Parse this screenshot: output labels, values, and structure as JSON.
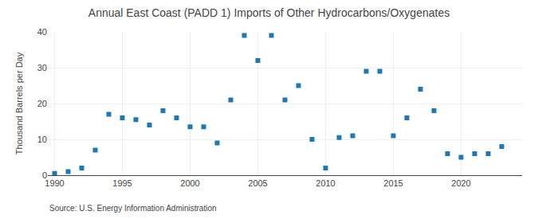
{
  "chart_data": {
    "type": "scatter",
    "title": "Annual East Coast (PADD 1) Imports of Other Hydrocarbons/Oxygenates",
    "ylabel": "Thousand Barrels per Day",
    "annotations": [
      "Source: U.S. Energy Information Administration"
    ],
    "x": [
      1990,
      1991,
      1992,
      1993,
      1994,
      1995,
      1996,
      1997,
      1998,
      1999,
      2000,
      2001,
      2002,
      2003,
      2004,
      2005,
      2006,
      2007,
      2008,
      2009,
      2010,
      2011,
      2012,
      2013,
      2014,
      2015,
      2016,
      2017,
      2018,
      2019,
      2020,
      2021,
      2022,
      2023
    ],
    "values": [
      0.5,
      1.0,
      2.0,
      7.0,
      17.0,
      16.0,
      15.5,
      14.0,
      18.0,
      16.0,
      13.5,
      13.5,
      9.0,
      21.0,
      39.0,
      32.0,
      39.0,
      21.0,
      25.0,
      10.0,
      2.0,
      10.5,
      11.0,
      29.0,
      29.0,
      11.0,
      16.0,
      24.0,
      18.0,
      6.0,
      5.0,
      6.0,
      6.0,
      8.0
    ],
    "xlim": [
      1989.5,
      2024.5
    ],
    "xticks": [
      1990,
      1995,
      2000,
      2005,
      2010,
      2015,
      2020
    ],
    "ylim": [
      0,
      40
    ],
    "yticks": [
      0,
      10,
      20,
      30,
      40
    ],
    "grid": true,
    "marker": "square"
  }
}
